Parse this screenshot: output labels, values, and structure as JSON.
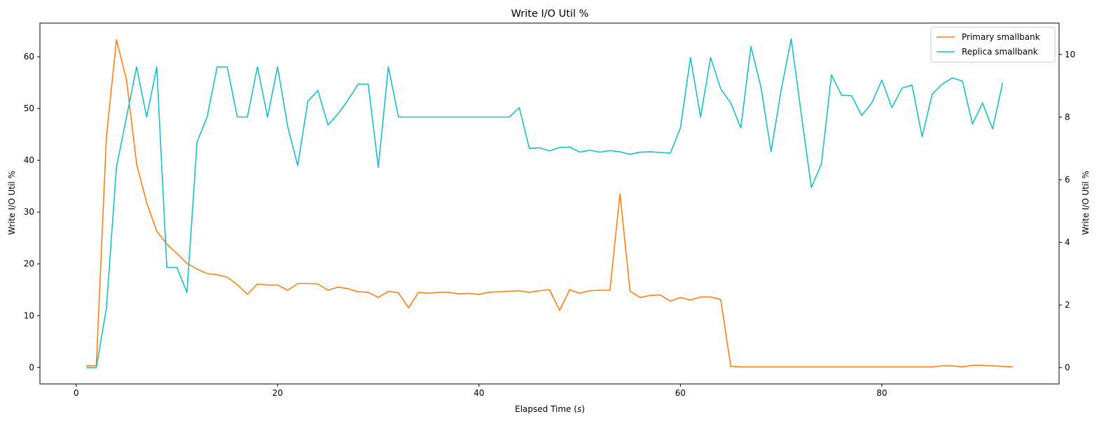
{
  "chart_data": {
    "type": "line",
    "title": "Write I/O Util %",
    "xlabel": "Elapsed Time (s)",
    "xlabel_prefix": "Elapsed Time (",
    "xlabel_var": "s",
    "xlabel_suffix": ")",
    "ylabel_left": "Write I/O Util %",
    "ylabel_right": "Write I/O Util %",
    "xlim": [
      -3.6,
      97.6
    ],
    "ylim_left": [
      -3.2,
      66.5
    ],
    "ylim_right": [
      -0.52,
      11.0
    ],
    "xticks": [
      0,
      20,
      40,
      60,
      80
    ],
    "yticks_left": [
      0,
      10,
      20,
      30,
      40,
      50,
      60
    ],
    "yticks_right": [
      0,
      2,
      4,
      6,
      8,
      10
    ],
    "grid": false,
    "legend_position": "top-right",
    "series": [
      {
        "name": "Primary smallbank",
        "color": "#ff7f0e",
        "axis": "left",
        "x": [
          1,
          2,
          3,
          4,
          5,
          6,
          7,
          8,
          9,
          10,
          11,
          12,
          13,
          14,
          15,
          16,
          17,
          18,
          19,
          20,
          21,
          22,
          23,
          24,
          25,
          26,
          27,
          28,
          29,
          30,
          31,
          32,
          33,
          34,
          35,
          36,
          37,
          38,
          39,
          40,
          41,
          42,
          43,
          44,
          45,
          46,
          47,
          48,
          49,
          50,
          51,
          52,
          53,
          54,
          55,
          56,
          57,
          58,
          59,
          60,
          61,
          62,
          63,
          64,
          65,
          66,
          67,
          68,
          69,
          70,
          71,
          72,
          73,
          74,
          75,
          76,
          77,
          78,
          79,
          80,
          81,
          82,
          83,
          84,
          85,
          86,
          87,
          88,
          89,
          90,
          91,
          92,
          93
        ],
        "y": [
          0.3,
          0.3,
          44.5,
          63.3,
          55.5,
          39.3,
          31.8,
          26.3,
          23.8,
          22.0,
          20.1,
          19.0,
          18.1,
          17.9,
          17.4,
          16.0,
          14.1,
          16.1,
          15.9,
          15.9,
          14.9,
          16.2,
          16.2,
          16.1,
          14.9,
          15.5,
          15.2,
          14.6,
          14.5,
          13.5,
          14.7,
          14.4,
          11.5,
          14.5,
          14.3,
          14.5,
          14.5,
          14.2,
          14.3,
          14.1,
          14.5,
          14.6,
          14.7,
          14.8,
          14.5,
          14.8,
          15.0,
          11.0,
          15.0,
          14.3,
          14.8,
          14.9,
          14.9,
          33.5,
          14.7,
          13.5,
          13.9,
          14.0,
          12.8,
          13.5,
          13.0,
          13.6,
          13.6,
          13.1,
          0.2,
          0.1,
          0.1,
          0.1,
          0.1,
          0.1,
          0.1,
          0.1,
          0.1,
          0.1,
          0.1,
          0.1,
          0.1,
          0.1,
          0.1,
          0.1,
          0.1,
          0.1,
          0.1,
          0.1,
          0.1,
          0.3,
          0.3,
          0.1,
          0.4,
          0.4,
          0.3,
          0.2,
          0.1
        ]
      },
      {
        "name": "Replica smallbank",
        "color": "#17becf",
        "axis": "right",
        "x": [
          1,
          2,
          3,
          4,
          5,
          6,
          7,
          8,
          9,
          10,
          11,
          12,
          13,
          14,
          15,
          16,
          17,
          18,
          19,
          20,
          21,
          22,
          23,
          24,
          25,
          26,
          27,
          28,
          29,
          30,
          31,
          32,
          33,
          34,
          35,
          36,
          37,
          38,
          39,
          40,
          41,
          42,
          43,
          44,
          45,
          46,
          47,
          48,
          49,
          50,
          51,
          52,
          53,
          54,
          55,
          56,
          57,
          58,
          59,
          60,
          61,
          62,
          63,
          64,
          65,
          66,
          67,
          68,
          69,
          70,
          71,
          72,
          73,
          74,
          75,
          76,
          77,
          78,
          79,
          80,
          81,
          82,
          83,
          84,
          85,
          86,
          87,
          88,
          89,
          90,
          91,
          92
        ],
        "y": [
          0,
          0,
          1.9,
          6.4,
          8.0,
          9.6,
          8.0,
          9.6,
          3.2,
          3.2,
          2.4,
          7.2,
          8.0,
          9.6,
          9.6,
          8.0,
          8.0,
          9.6,
          8.0,
          9.6,
          7.7,
          6.45,
          8.5,
          8.85,
          7.75,
          8.1,
          8.55,
          9.05,
          9.05,
          6.4,
          9.6,
          8.0,
          8.0,
          8.0,
          8.0,
          8.0,
          8.0,
          8.0,
          8.0,
          8.0,
          8.0,
          8.0,
          8.0,
          8.3,
          7.0,
          7.02,
          6.92,
          7.03,
          7.04,
          6.88,
          6.94,
          6.88,
          6.93,
          6.89,
          6.81,
          6.88,
          6.89,
          6.87,
          6.85,
          7.65,
          9.9,
          8.0,
          9.9,
          8.9,
          8.45,
          7.65,
          10.25,
          8.95,
          6.9,
          8.85,
          10.5,
          8.1,
          5.75,
          6.5,
          9.35,
          8.7,
          8.68,
          8.05,
          8.45,
          9.18,
          8.3,
          8.92,
          9.02,
          7.37,
          8.73,
          9.05,
          9.25,
          9.15,
          7.78,
          8.45,
          7.62,
          9.1
        ]
      }
    ]
  }
}
